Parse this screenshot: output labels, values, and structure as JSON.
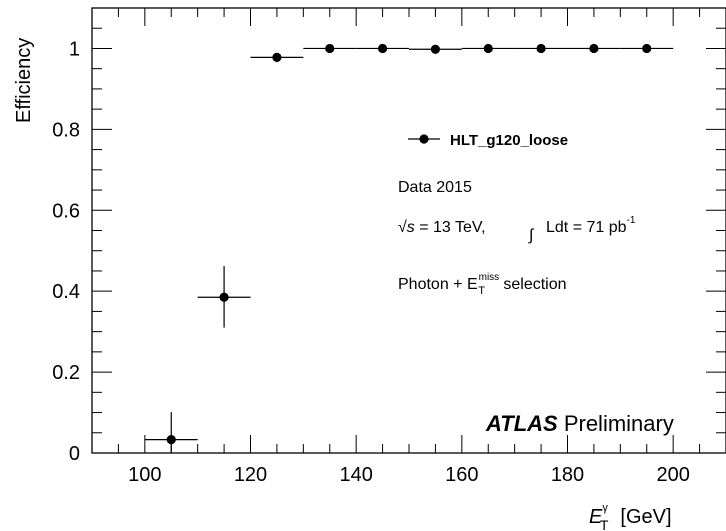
{
  "chart_data": {
    "type": "scatter",
    "title": "",
    "xlabel": {
      "main": "E",
      "sup": "γ",
      "sub": "T",
      "unit": "[GeV]"
    },
    "ylabel": "Efficiency",
    "xlim": [
      90,
      210
    ],
    "ylim": [
      0,
      1.1
    ],
    "xticks": [
      100,
      120,
      140,
      160,
      180,
      200
    ],
    "yticks": [
      0,
      0.2,
      0.4,
      0.6,
      0.8,
      1
    ],
    "ytick_labels": [
      "0",
      "0.2",
      "0.4",
      "0.6",
      "0.8",
      "1"
    ],
    "grid": false,
    "series": [
      {
        "name": "HLT_g120_loose",
        "points": [
          {
            "x": 105,
            "y": 0.033,
            "xerr": 5,
            "yerr_up": 0.068,
            "yerr_down": 0.033
          },
          {
            "x": 115,
            "y": 0.385,
            "xerr": 5,
            "yerr_up": 0.077,
            "yerr_down": 0.075
          },
          {
            "x": 125,
            "y": 0.978,
            "xerr": 5,
            "yerr_up": 0.008,
            "yerr_down": 0.012
          },
          {
            "x": 135,
            "y": 1.0,
            "xerr": 5,
            "yerr_up": 0,
            "yerr_down": 0.004
          },
          {
            "x": 145,
            "y": 1.0,
            "xerr": 5,
            "yerr_up": 0,
            "yerr_down": 0.004
          },
          {
            "x": 155,
            "y": 0.998,
            "xerr": 5,
            "yerr_up": 0.002,
            "yerr_down": 0.004
          },
          {
            "x": 165,
            "y": 1.0,
            "xerr": 5,
            "yerr_up": 0,
            "yerr_down": 0.004
          },
          {
            "x": 175,
            "y": 1.0,
            "xerr": 5,
            "yerr_up": 0,
            "yerr_down": 0.004
          },
          {
            "x": 185,
            "y": 1.0,
            "xerr": 5,
            "yerr_up": 0,
            "yerr_down": 0.004
          },
          {
            "x": 195,
            "y": 1.0,
            "xerr": 5,
            "yerr_up": 0,
            "yerr_down": 0.004
          }
        ]
      }
    ],
    "legend": {
      "position": "upper-middle",
      "entries": [
        "HLT_g120_loose"
      ]
    },
    "annotations": {
      "data_label": "Data 2015",
      "sqrt": "√",
      "s_symbol": "s",
      "energy": " = 13 TeV,",
      "integral": "∫",
      "lumi_text": "Ldt = 71 pb",
      "lumi_exp": "-1",
      "selection_prefix": "Photon + E",
      "selection_sup": "miss",
      "selection_sub": "T",
      "selection_suffix": " selection",
      "atlas": "ATLAS",
      "preliminary": " Preliminary"
    },
    "colors": {
      "marker": "#000000",
      "axis": "#000000"
    }
  }
}
